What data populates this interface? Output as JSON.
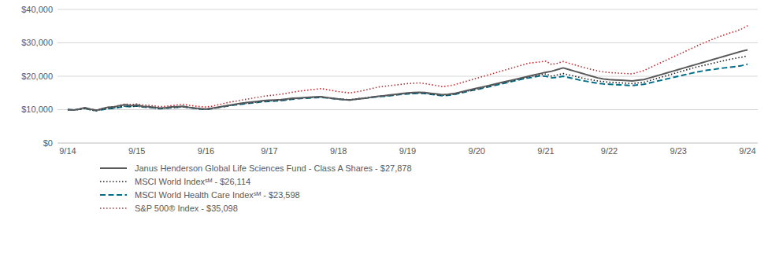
{
  "chart_data": {
    "type": "line",
    "categories": [
      "9/14",
      null,
      null,
      null,
      null,
      null,
      null,
      null,
      null,
      null,
      null,
      null,
      "9/15",
      null,
      null,
      null,
      null,
      null,
      null,
      null,
      null,
      null,
      null,
      null,
      "9/16",
      null,
      null,
      null,
      null,
      null,
      null,
      null,
      null,
      null,
      null,
      "9/17",
      null,
      null,
      null,
      null,
      null,
      null,
      null,
      null,
      null,
      null,
      null,
      "9/18",
      null,
      null,
      null,
      null,
      null,
      null,
      null,
      null,
      null,
      null,
      null,
      "9/19",
      null,
      null,
      null,
      null,
      null,
      null,
      null,
      null,
      null,
      null,
      null,
      "9/20",
      null,
      null,
      null,
      null,
      null,
      null,
      null,
      null,
      null,
      null,
      null,
      "9/21",
      null,
      null,
      null,
      null,
      null,
      null,
      null,
      null,
      null,
      null,
      "9/22",
      null,
      null,
      null,
      null,
      null,
      null,
      null,
      null,
      null,
      null,
      null,
      "9/23",
      null,
      null,
      null,
      null,
      null,
      null,
      null,
      null,
      null,
      null,
      null,
      "9/24"
    ],
    "series": [
      {
        "name": "Janus Henderson Global Life Sciences Fund - Class A Shares - $27,878",
        "color": "#58595b",
        "line_style": "solid",
        "values": [
          10000,
          9900,
          10200,
          10600,
          10100,
          9800,
          10300,
          10700,
          10800,
          11200,
          11500,
          11200,
          11400,
          11000,
          10900,
          10700,
          10500,
          10600,
          10800,
          10900,
          11000,
          10700,
          10500,
          10300,
          10200,
          10400,
          10700,
          11000,
          11300,
          11600,
          11900,
          12100,
          12300,
          12500,
          12700,
          12800,
          12900,
          13000,
          13200,
          13400,
          13500,
          13600,
          13700,
          13800,
          13900,
          13600,
          13400,
          13200,
          13000,
          12900,
          13100,
          13300,
          13500,
          13800,
          14000,
          14200,
          14400,
          14600,
          14800,
          15000,
          15100,
          15200,
          15100,
          14900,
          14700,
          14500,
          14600,
          14800,
          15200,
          15600,
          16000,
          16400,
          16800,
          17200,
          17600,
          18000,
          18400,
          18800,
          19200,
          19600,
          20000,
          20400,
          20800,
          21200,
          21500,
          22000,
          22500,
          22000,
          21500,
          21000,
          20500,
          20000,
          19500,
          19200,
          19000,
          18900,
          18800,
          18700,
          18600,
          18800,
          19000,
          19500,
          20000,
          20500,
          21000,
          21500,
          22000,
          22500,
          23000,
          23500,
          24000,
          24500,
          25000,
          25500,
          26000,
          26500,
          27000,
          27500,
          27878
        ]
      },
      {
        "name": "MSCI World Indexˢᴹ - $26,114",
        "color": "#231f20",
        "line_style": "dotted",
        "values": [
          10000,
          9900,
          10100,
          10400,
          9900,
          9700,
          10100,
          10400,
          10500,
          10800,
          11100,
          10900,
          11100,
          10800,
          10700,
          10500,
          10300,
          10400,
          10600,
          10700,
          10900,
          10600,
          10400,
          10200,
          10100,
          10300,
          10600,
          10900,
          11200,
          11500,
          11700,
          11900,
          12100,
          12300,
          12500,
          12600,
          12700,
          12800,
          13000,
          13200,
          13400,
          13500,
          13600,
          13700,
          13800,
          13600,
          13400,
          13200,
          13100,
          13000,
          13200,
          13400,
          13600,
          13800,
          14000,
          14100,
          14300,
          14500,
          14700,
          14800,
          14900,
          15000,
          14900,
          14700,
          14500,
          14300,
          14400,
          14600,
          15000,
          15400,
          15800,
          16200,
          16600,
          17000,
          17400,
          17800,
          18200,
          18600,
          19000,
          19400,
          19800,
          20100,
          20400,
          20700,
          20000,
          20400,
          20800,
          20400,
          20000,
          19600,
          19200,
          18900,
          18600,
          18400,
          18200,
          18100,
          18000,
          17900,
          17800,
          18000,
          18200,
          18700,
          19200,
          19700,
          20200,
          20700,
          21200,
          21700,
          22200,
          22700,
          23100,
          23500,
          23900,
          24300,
          24700,
          25100,
          25400,
          25700,
          26114
        ]
      },
      {
        "name": "MSCI World Health Care Indexˢᴹ - $23,598",
        "color": "#006e8a",
        "line_style": "dashed",
        "values": [
          10000,
          9950,
          10100,
          10400,
          9950,
          9700,
          10000,
          10300,
          10400,
          10700,
          11000,
          10900,
          11100,
          10800,
          10700,
          10500,
          10300,
          10400,
          10600,
          10700,
          10900,
          10600,
          10400,
          10200,
          10100,
          10300,
          10600,
          10900,
          11200,
          11400,
          11600,
          11800,
          12000,
          12200,
          12400,
          12500,
          12600,
          12700,
          12900,
          13100,
          13300,
          13400,
          13500,
          13600,
          13700,
          13500,
          13300,
          13100,
          13000,
          12900,
          13100,
          13300,
          13500,
          13700,
          13900,
          14000,
          14200,
          14400,
          14600,
          14700,
          14800,
          14900,
          14800,
          14600,
          14400,
          14200,
          14300,
          14500,
          14900,
          15300,
          15700,
          16000,
          16400,
          16800,
          17200,
          17600,
          18000,
          18400,
          18800,
          19200,
          19500,
          19800,
          20100,
          20000,
          19500,
          19700,
          20000,
          19600,
          19200,
          18800,
          18500,
          18200,
          17900,
          17700,
          17600,
          17500,
          17400,
          17300,
          17200,
          17400,
          17600,
          18000,
          18400,
          18800,
          19200,
          19600,
          20000,
          20400,
          20800,
          21200,
          21500,
          21800,
          22000,
          22300,
          22500,
          22700,
          22900,
          23200,
          23598
        ]
      },
      {
        "name": "S&P 500® Index - $35,098",
        "color": "#c1272d",
        "line_style": "dotted",
        "values": [
          10000,
          9900,
          10100,
          10500,
          10100,
          9900,
          10300,
          10700,
          10900,
          11300,
          11700,
          11500,
          11700,
          11400,
          11300,
          11100,
          10900,
          11000,
          11200,
          11400,
          11600,
          11300,
          11100,
          10900,
          10800,
          11000,
          11400,
          11800,
          12200,
          12500,
          12800,
          13100,
          13400,
          13700,
          14000,
          14200,
          14400,
          14600,
          14900,
          15200,
          15500,
          15700,
          15900,
          16100,
          16300,
          16000,
          15700,
          15400,
          15200,
          15000,
          15300,
          15600,
          16000,
          16400,
          16800,
          17000,
          17200,
          17400,
          17600,
          17800,
          17900,
          18000,
          17800,
          17500,
          17200,
          16900,
          17100,
          17400,
          17900,
          18400,
          18900,
          19400,
          19900,
          20400,
          20900,
          21400,
          21900,
          22400,
          22900,
          23400,
          23900,
          24100,
          24300,
          24500,
          23500,
          23900,
          24400,
          23900,
          23400,
          22900,
          22400,
          22000,
          21600,
          21300,
          21100,
          21000,
          20900,
          20800,
          20700,
          21200,
          21700,
          22500,
          23300,
          24100,
          24900,
          25700,
          26500,
          27300,
          28100,
          28900,
          29700,
          30400,
          31100,
          31800,
          32400,
          33000,
          33500,
          34200,
          35098
        ]
      }
    ],
    "ylim": [
      0,
      40000
    ],
    "yticks": [
      {
        "value": 0,
        "label": "$0"
      },
      {
        "value": 10000,
        "label": "$10,000"
      },
      {
        "value": 20000,
        "label": "$20,000"
      },
      {
        "value": 30000,
        "label": "$30,000"
      },
      {
        "value": 40000,
        "label": "$40,000"
      }
    ],
    "grid": true,
    "legend": "bottom"
  }
}
